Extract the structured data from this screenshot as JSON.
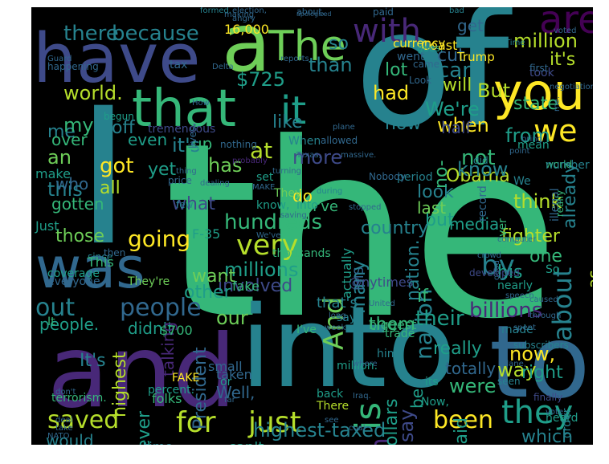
{
  "words": [
    "The",
    "of",
    "I",
    "the",
    "and",
    "into",
    "to",
    "have",
    "a",
    "that",
    "was",
    "you",
    "are",
    "with",
    "we",
    "it",
    "is",
    "they",
    "for",
    "just",
    "saved",
    "highest-taxed",
    "been",
    "people",
    "out",
    "very",
    "by",
    "about",
    "billions",
    "And",
    "nation",
    "on",
    "their",
    "our",
    "going",
    "has",
    "at",
    "million",
    "there",
    "because",
    "world.",
    "had",
    "more",
    "not",
    "Obama",
    "think",
    "way",
    "which",
    "dollars",
    "say",
    "them",
    "an",
    "got",
    "me",
    "this",
    "all",
    "those",
    "millions",
    "hundreds",
    "involved",
    "what",
    "it's",
    "than",
    "so",
    "can",
    "lot",
    "will",
    "now",
    "when",
    "half",
    "state",
    "from",
    "We're",
    "It's",
    "if",
    "his",
    "already",
    "one",
    "as",
    "fighter",
    "but",
    "look",
    "know",
    "many",
    "country",
    "nation.",
    "really",
    "be",
    "said",
    "were",
    "totally",
    "now,",
    "right",
    "would",
    "never",
    "highest",
    "people.",
    "didn't",
    "other",
    "up",
    "$725",
    "off",
    "over",
    "who",
    "gotten",
    "my",
    "yet",
    "like",
    "even",
    "tax",
    "world",
    "cut",
    "get",
    "paid",
    "about,",
    "election,",
    "formed.",
    "16,000",
    "currency",
    "Trump",
    "Coast",
    "But",
    "it's",
    "no-",
    "do",
    "set",
    "make",
    "last",
    "media",
    "F-35",
    "Just",
    "want",
    "talking",
    "fake",
    "They're",
    "I've",
    "that's",
    "biggest",
    "$700",
    "folks",
    "President",
    "Well,",
    "taken",
    "small",
    "percent.",
    "or",
    "FAKE",
    "can't",
    "taxes",
    "time",
    "election",
    "Obamacare",
    "insurance",
    "&",
    "There",
    "back",
    "Now,",
    "heard",
    "made",
    "trade",
    "him.",
    "I've",
    "its",
    "order",
    "number",
    "mean",
    "did",
    "illegal",
    "@nytimes",
    "ISIS",
    "actually",
    "thousands",
    "since",
    "This",
    "coverage",
    "everyone",
    "terrorism.",
    "When",
    "We",
    "They",
    "say",
    "million.",
    "know,",
    "into",
    "really",
    "So",
    "nearly",
    "It",
    "begun",
    "tremendous",
    "lives.",
    "probably",
    "nothing",
    "price",
    "period",
    "Nobody",
    "record",
    "United",
    "cover",
    "good",
    "developed",
    "took",
    "first",
    "came",
    "negotiation",
    "Look",
    "Delta",
    "reports",
    "goes.",
    "went",
    "bad",
    "apologized",
    "making",
    "angry",
    "voted",
    "Guard",
    "happening",
    "How",
    "We've",
    "plane",
    "allowed",
    "Texas,",
    "massive.",
    "during",
    "stopped",
    "speech.",
    "crowd",
    "computer",
    "caused",
    "through",
    "subscribers",
    "plane,",
    "seen",
    "finally",
    "NATO",
    "take",
    "far",
    "Iraq.",
    "coal",
    "see",
    "long",
    "week",
    "saving",
    "dealing",
    "few",
    "then",
    "don't",
    "airplanes.",
    "Time",
    "me.",
    "bring",
    "point",
    "turning",
    "MAKE",
    "thing",
    "vote.",
    "deal",
    "spent",
    "where",
    "ever.",
    "lose",
    "times"
  ],
  "colors": {
    "background": "#000000",
    "palette": [
      "#440154",
      "#482878",
      "#3e4a89",
      "#31688e",
      "#26828e",
      "#1f9e89",
      "#35b779",
      "#6ece58",
      "#b5de2b",
      "#fde725"
    ]
  }
}
